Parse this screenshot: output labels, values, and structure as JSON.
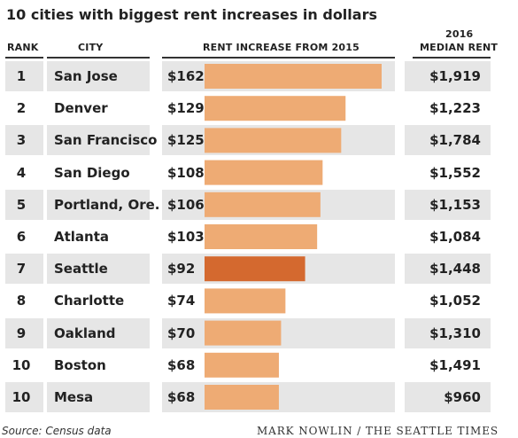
{
  "title": "10 cities with biggest rent increases in dollars",
  "headers": {
    "rank": "RANK",
    "city": "CITY",
    "increase": "RENT INCREASE FROM 2015",
    "median_line1": "2016",
    "median_line2": "MEDIAN RENT"
  },
  "colors": {
    "bar": "#eeab74",
    "highlight_bar": "#d4692f",
    "row_shade": "#e6e6e6"
  },
  "chart_data": {
    "type": "bar",
    "orientation": "horizontal",
    "series_label": "RENT INCREASE FROM 2015",
    "highlight_index": 6,
    "rows": [
      {
        "rank": "1",
        "city": "San Jose",
        "increase": 162,
        "increase_label": "$162",
        "median_rent": "$1,919"
      },
      {
        "rank": "2",
        "city": "Denver",
        "increase": 129,
        "increase_label": "$129",
        "median_rent": "$1,223"
      },
      {
        "rank": "3",
        "city": "San Francisco",
        "increase": 125,
        "increase_label": "$125",
        "median_rent": "$1,784"
      },
      {
        "rank": "4",
        "city": "San Diego",
        "increase": 108,
        "increase_label": "$108",
        "median_rent": "$1,552"
      },
      {
        "rank": "5",
        "city": "Portland, Ore.",
        "increase": 106,
        "increase_label": "$106",
        "median_rent": "$1,153"
      },
      {
        "rank": "6",
        "city": "Atlanta",
        "increase": 103,
        "increase_label": "$103",
        "median_rent": "$1,084"
      },
      {
        "rank": "7",
        "city": "Seattle",
        "increase": 92,
        "increase_label": "$92",
        "median_rent": "$1,448"
      },
      {
        "rank": "8",
        "city": "Charlotte",
        "increase": 74,
        "increase_label": "$74",
        "median_rent": "$1,052"
      },
      {
        "rank": "9",
        "city": "Oakland",
        "increase": 70,
        "increase_label": "$70",
        "median_rent": "$1,310"
      },
      {
        "rank": "10",
        "city": "Boston",
        "increase": 68,
        "increase_label": "$68",
        "median_rent": "$1,491"
      },
      {
        "rank": "10",
        "city": "Mesa",
        "increase": 68,
        "increase_label": "$68",
        "median_rent": "$960"
      }
    ]
  },
  "source": "Source: Census data",
  "credit": "MARK NOWLIN / THE SEATTLE TIMES"
}
